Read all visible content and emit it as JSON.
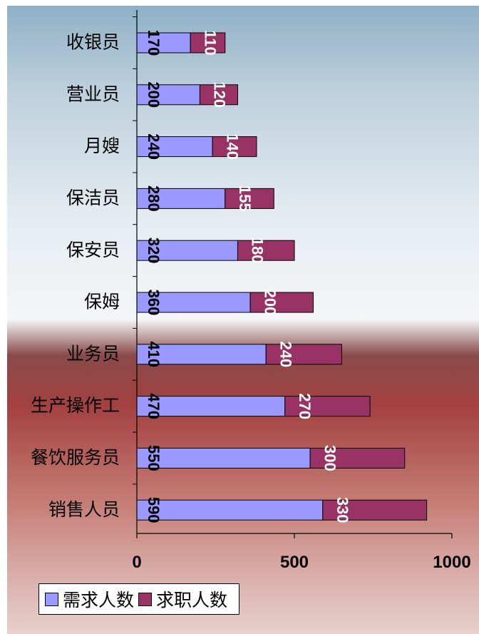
{
  "chart_data": {
    "type": "bar",
    "orientation": "horizontal",
    "stacked": true,
    "categories": [
      "收银员",
      "营业员",
      "月嫂",
      "保洁员",
      "保安员",
      "保姆",
      "业务员",
      "生产操作工",
      "餐饮服务员",
      "销售人员"
    ],
    "series": [
      {
        "name": "需求人数",
        "color": "#9999ff",
        "label_color": "#000000",
        "values": [
          170,
          200,
          240,
          280,
          320,
          360,
          410,
          470,
          550,
          590
        ]
      },
      {
        "name": "求职人数",
        "color": "#993366",
        "label_color": "#ffffff",
        "values": [
          110,
          120,
          140,
          155,
          180,
          200,
          240,
          270,
          300,
          330
        ]
      }
    ],
    "xlim": [
      0,
      1000
    ],
    "xticks": [
      "0",
      "500",
      "1000"
    ],
    "grid": false,
    "legend_position": "bottom-left"
  }
}
